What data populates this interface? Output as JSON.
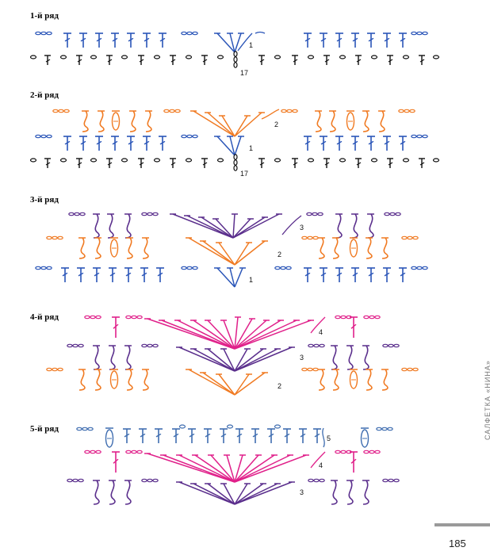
{
  "rows": [
    {
      "title": "1-й ряд"
    },
    {
      "title": "2-й ряд"
    },
    {
      "title": "3-й ряд"
    },
    {
      "title": "4-й ряд"
    },
    {
      "title": "5-й ряд"
    }
  ],
  "side_label": "САЛФЕТКА «НИНА»",
  "page_number": "185",
  "marks": {
    "r1_row": "1",
    "r1_base": "17",
    "r2_row2": "2",
    "r2_row1": "1",
    "r2_base": "17",
    "r3_row3": "3",
    "r3_row2": "2",
    "r3_row1": "1",
    "r4_row4": "4",
    "r4_row3": "3",
    "r4_row2": "2",
    "r5_row5": "5",
    "r5_row4": "4",
    "r5_row3": "3"
  },
  "colors": {
    "black": "#111111",
    "blue": "#2a55b8",
    "orange": "#f07a22",
    "purple": "#5a2e8c",
    "magenta": "#e0208a",
    "steel": "#3f6db0"
  }
}
